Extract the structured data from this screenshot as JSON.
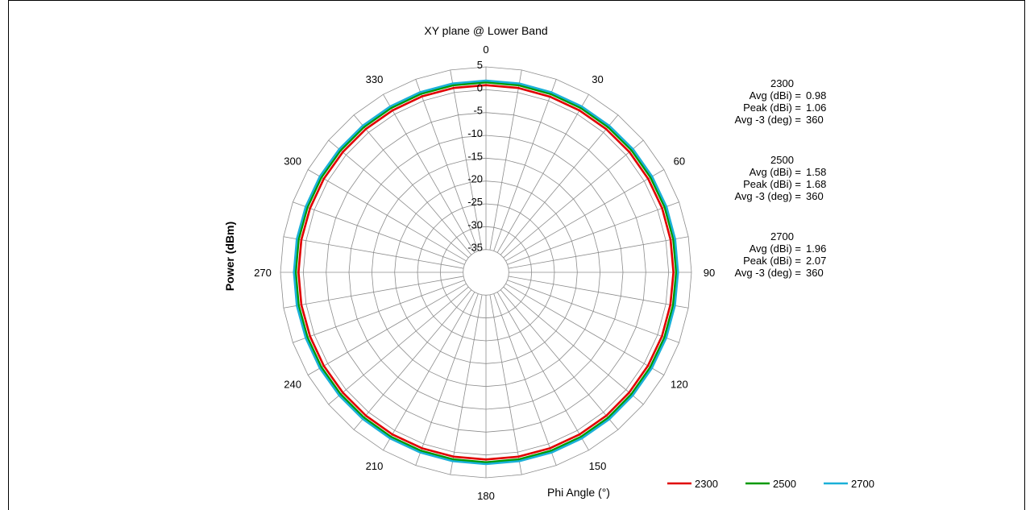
{
  "chart_data": {
    "type": "polar",
    "title": "XY plane @ Lower Band",
    "ylabel": "Power (dBm)",
    "xlabel": "Phi  Angle (°)",
    "radial_ticks": [
      5,
      0,
      -5,
      -10,
      -15,
      -20,
      -25,
      -30,
      -35
    ],
    "radial_range": [
      -40,
      5
    ],
    "angle_ticks": [
      0,
      30,
      60,
      90,
      120,
      150,
      180,
      210,
      240,
      270,
      300,
      330
    ],
    "angle_step_deg": 10,
    "legend_position": "bottom-right",
    "series": [
      {
        "name": "2300",
        "color": "#e00000",
        "values_deg": [
          0,
          10,
          20,
          30,
          40,
          50,
          60,
          70,
          80,
          90,
          100,
          110,
          120,
          130,
          140,
          150,
          160,
          170,
          180,
          190,
          200,
          210,
          220,
          230,
          240,
          250,
          260,
          270,
          280,
          290,
          300,
          310,
          320,
          330,
          340,
          350
        ],
        "values": [
          1.0,
          1.0,
          0.95,
          0.95,
          0.95,
          1.0,
          1.0,
          1.05,
          1.05,
          1.05,
          1.0,
          1.0,
          0.95,
          0.95,
          1.0,
          1.0,
          1.0,
          1.0,
          1.0,
          1.0,
          1.0,
          1.0,
          0.95,
          0.95,
          1.0,
          1.0,
          1.05,
          1.05,
          1.05,
          1.0,
          1.0,
          0.95,
          0.95,
          0.95,
          1.0,
          1.0
        ]
      },
      {
        "name": "2500",
        "color": "#009900",
        "values_deg": [
          0,
          10,
          20,
          30,
          40,
          50,
          60,
          70,
          80,
          90,
          100,
          110,
          120,
          130,
          140,
          150,
          160,
          170,
          180,
          190,
          200,
          210,
          220,
          230,
          240,
          250,
          260,
          270,
          280,
          290,
          300,
          310,
          320,
          330,
          340,
          350
        ],
        "values": [
          1.6,
          1.6,
          1.55,
          1.55,
          1.55,
          1.6,
          1.6,
          1.65,
          1.65,
          1.65,
          1.6,
          1.6,
          1.55,
          1.55,
          1.6,
          1.6,
          1.6,
          1.6,
          1.6,
          1.6,
          1.6,
          1.6,
          1.55,
          1.55,
          1.6,
          1.6,
          1.65,
          1.65,
          1.65,
          1.6,
          1.6,
          1.55,
          1.55,
          1.55,
          1.6,
          1.6
        ]
      },
      {
        "name": "2700",
        "color": "#1ab0d8",
        "values_deg": [
          0,
          10,
          20,
          30,
          40,
          50,
          60,
          70,
          80,
          90,
          100,
          110,
          120,
          130,
          140,
          150,
          160,
          170,
          180,
          190,
          200,
          210,
          220,
          230,
          240,
          250,
          260,
          270,
          280,
          290,
          300,
          310,
          320,
          330,
          340,
          350
        ],
        "values": [
          2.0,
          2.0,
          1.95,
          1.95,
          1.95,
          2.0,
          2.0,
          2.05,
          2.05,
          2.05,
          2.0,
          2.0,
          1.95,
          1.95,
          2.0,
          2.0,
          2.0,
          2.0,
          2.0,
          2.0,
          2.0,
          2.0,
          1.95,
          1.95,
          2.0,
          2.0,
          2.05,
          2.05,
          2.05,
          2.0,
          2.0,
          1.95,
          1.95,
          1.95,
          2.0,
          2.0
        ]
      }
    ]
  },
  "stats": [
    {
      "freq": "2300",
      "avg_label": "Avg (dBi) =",
      "avg": "0.98",
      "peak_label": "Peak (dBi) =",
      "peak": "1.06",
      "bw_label": "Avg -3 (deg) =",
      "bw": "360"
    },
    {
      "freq": "2500",
      "avg_label": "Avg (dBi) =",
      "avg": "1.58",
      "peak_label": "Peak (dBi) =",
      "peak": "1.68",
      "bw_label": "Avg -3 (deg) =",
      "bw": "360"
    },
    {
      "freq": "2700",
      "avg_label": "Avg (dBi) =",
      "avg": "1.96",
      "peak_label": "Peak (dBi) =",
      "peak": "2.07",
      "bw_label": "Avg -3 (deg) =",
      "bw": "360"
    }
  ]
}
